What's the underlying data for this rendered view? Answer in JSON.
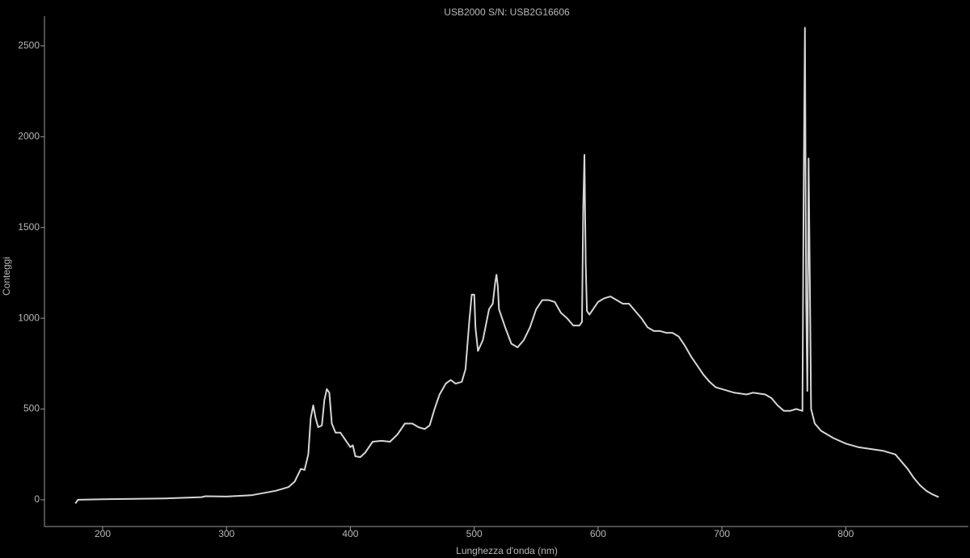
{
  "chart_data": {
    "type": "line",
    "title": "USB2000 S/N: USB2G16606",
    "x_label": "Lunghezza d'onda (nm)",
    "y_label": "Conteggi",
    "xlim": [
      153,
      899
    ],
    "ylim": [
      -147,
      2664
    ],
    "xticks": [
      200,
      300,
      400,
      500,
      600,
      700,
      800
    ],
    "yticks": [
      0,
      500,
      1000,
      1500,
      2000,
      2500
    ],
    "grid": false,
    "series": [
      {
        "name": "USB2G16606",
        "color": "#d6d6d6",
        "x": [
          178,
          180,
          200,
          250,
          280,
          283,
          300,
          320,
          340,
          350,
          355,
          360,
          363,
          366,
          368,
          370,
          372,
          374,
          377,
          379,
          381,
          383,
          385,
          388,
          392,
          396,
          400,
          402,
          404,
          408,
          412,
          418,
          425,
          432,
          438,
          444,
          450,
          455,
          460,
          464,
          468,
          472,
          477,
          481,
          485,
          490,
          493,
          496,
          498,
          500,
          501,
          503,
          507,
          512,
          515,
          517,
          518,
          519,
          520,
          525,
          530,
          535,
          540,
          545,
          550,
          555,
          560,
          565,
          570,
          575,
          580,
          585,
          587,
          588,
          589,
          590,
          591,
          593,
          597,
          600,
          605,
          610,
          615,
          620,
          625,
          630,
          635,
          640,
          645,
          650,
          655,
          660,
          665,
          670,
          675,
          680,
          685,
          690,
          695,
          700,
          710,
          720,
          725,
          735,
          740,
          745,
          750,
          755,
          760,
          765,
          766,
          767,
          768,
          769,
          770,
          771,
          772,
          775,
          780,
          790,
          800,
          810,
          820,
          830,
          840,
          845,
          850,
          855,
          860,
          865,
          870,
          875
        ],
        "values": [
          -20,
          0,
          3,
          8,
          15,
          20,
          18,
          25,
          50,
          70,
          100,
          170,
          165,
          250,
          450,
          520,
          450,
          400,
          410,
          550,
          610,
          590,
          420,
          370,
          370,
          330,
          290,
          300,
          240,
          235,
          260,
          320,
          325,
          320,
          360,
          420,
          420,
          400,
          390,
          410,
          500,
          580,
          640,
          660,
          640,
          650,
          720,
          980,
          1130,
          1130,
          950,
          820,
          880,
          1050,
          1080,
          1200,
          1240,
          1180,
          1050,
          950,
          860,
          840,
          880,
          950,
          1050,
          1100,
          1100,
          1090,
          1030,
          1000,
          960,
          960,
          980,
          1600,
          1900,
          1300,
          1040,
          1020,
          1060,
          1090,
          1110,
          1120,
          1100,
          1080,
          1080,
          1040,
          1000,
          950,
          930,
          930,
          920,
          920,
          900,
          850,
          790,
          740,
          690,
          650,
          620,
          610,
          590,
          580,
          590,
          580,
          560,
          520,
          490,
          490,
          500,
          490,
          1700,
          2600,
          1100,
          600,
          1880,
          1200,
          500,
          420,
          380,
          340,
          310,
          290,
          280,
          270,
          250,
          210,
          170,
          120,
          80,
          50,
          30,
          15
        ]
      }
    ]
  }
}
